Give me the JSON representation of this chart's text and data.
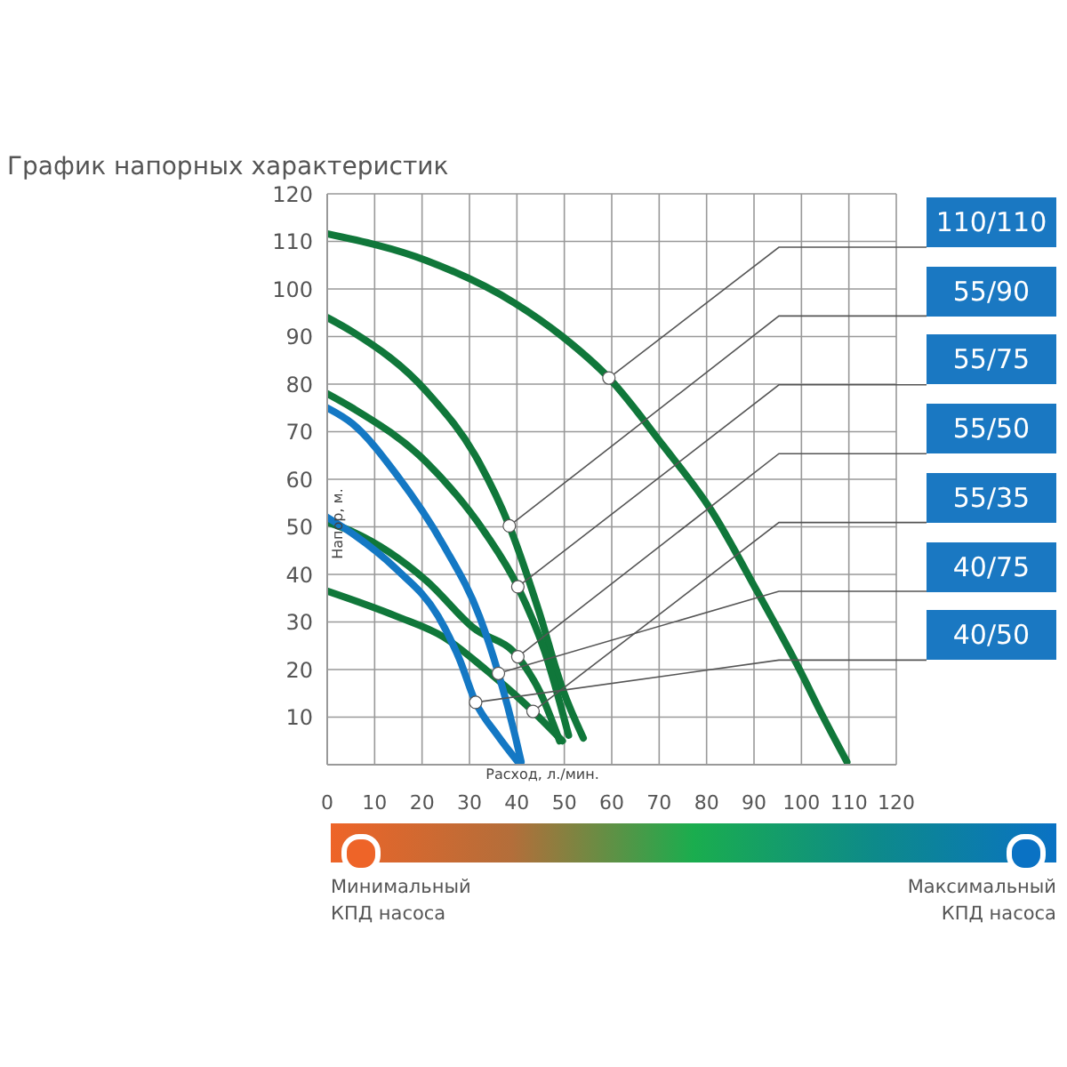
{
  "chart_data": {
    "type": "line",
    "title": "График напорных характеристик",
    "xlabel": "Расход, л./мин.",
    "ylabel": "Напор, м.",
    "xlim": [
      0,
      120
    ],
    "xticks": [
      0,
      10,
      20,
      30,
      40,
      50,
      60,
      70,
      80,
      90,
      100,
      110,
      120
    ],
    "ylim": [
      0,
      120
    ],
    "yticks": [
      {
        "value": 0,
        "label": null
      },
      10,
      20,
      30,
      40,
      50,
      60,
      70,
      80,
      90,
      100,
      110,
      120
    ],
    "grid": true,
    "marker": "none",
    "line_style": "solid",
    "series": [
      {
        "color": "#10773a",
        "x": [
          0,
          20.9,
          39.6,
          49.6,
          59.4,
          70.9,
          80.9,
          90.9,
          99.6,
          104.6,
          109.6
        ],
        "values": [
          111.6,
          106,
          97,
          90,
          81.3,
          67,
          53.6,
          36,
          20,
          10,
          0.6
        ]
      },
      {
        "color": "#10773a",
        "x": [
          0,
          5.3,
          20.9,
          32,
          38.4,
          44.6,
          49.6,
          54
        ],
        "values": [
          94,
          91,
          78.5,
          63.6,
          50.2,
          32.4,
          16,
          5.6
        ]
      },
      {
        "color": "#10773a",
        "x": [
          0,
          5.3,
          20.9,
          33.4,
          40.2,
          45.9,
          50.9
        ],
        "values": [
          78,
          75,
          63.6,
          48.6,
          37.4,
          23.7,
          6.2
        ]
      },
      {
        "color": "#10773a",
        "x": [
          0,
          5.3,
          20.9,
          30.9,
          40.2,
          45,
          49
        ],
        "values": [
          51,
          49,
          38.7,
          28.7,
          22.7,
          15,
          5
        ]
      },
      {
        "color": "#10773a",
        "x": [
          0,
          14.6,
          24.6,
          33.4,
          43.4,
          49.6
        ],
        "values": [
          36.5,
          31.2,
          26.8,
          20,
          11.2,
          5
        ]
      },
      {
        "color": "#1478c4",
        "x": [
          0,
          5.3,
          14.6,
          24.6,
          32.1,
          36.1,
          39.6,
          40.9
        ],
        "values": [
          75,
          71.7,
          61,
          46,
          31.2,
          19.2,
          6.2,
          0.6
        ]
      },
      {
        "color": "#1478c4",
        "x": [
          0,
          5.3,
          14.6,
          23.4,
          27.8,
          31.3,
          35.9,
          40.2
        ],
        "values": [
          52,
          48.6,
          41.1,
          31.2,
          22.4,
          13.1,
          6.2,
          0.6
        ]
      }
    ],
    "annotations": [
      {
        "text": "110/110",
        "x": 59.4,
        "y": 81.3
      },
      {
        "text": "55/90",
        "x": 38.4,
        "y": 50.2
      },
      {
        "text": "55/75",
        "x": 40.2,
        "y": 37.4
      },
      {
        "text": "55/50",
        "x": 40.2,
        "y": 22.7
      },
      {
        "text": "55/35",
        "x": 43.4,
        "y": 11.2
      },
      {
        "text": "40/75",
        "x": 36.1,
        "y": 19.2
      },
      {
        "text": "40/50",
        "x": 31.3,
        "y": 13.1
      },
      "Минимальный КПД насоса",
      "Максимальный КПД насоса"
    ]
  }
}
